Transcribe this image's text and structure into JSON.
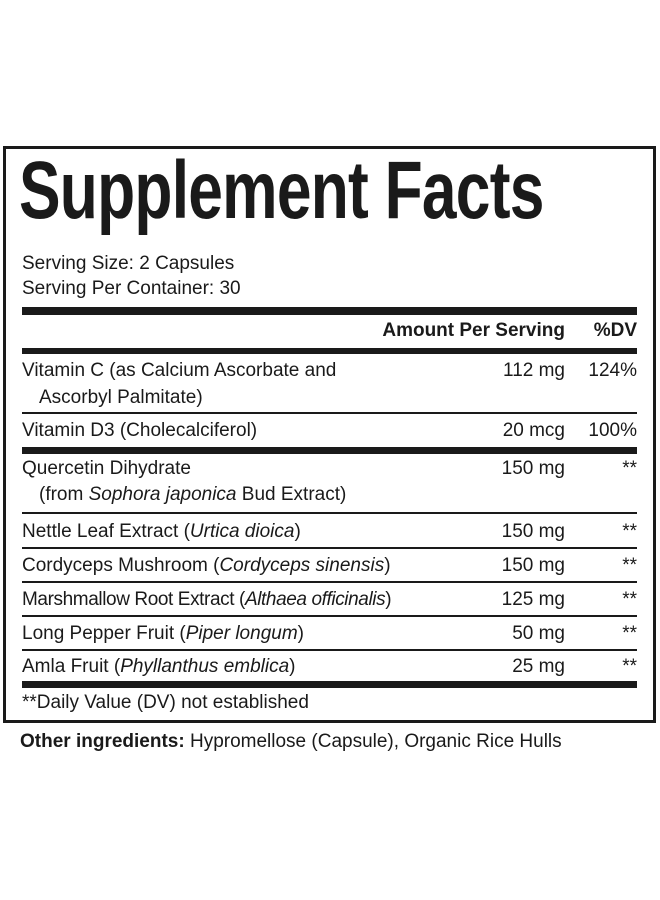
{
  "title": "Supplement Facts",
  "serving_size": "Serving Size: 2 Capsules",
  "servings_per_container": "Serving Per Container: 30",
  "header": {
    "amount": "Amount Per Serving",
    "dv": "%DV"
  },
  "rows": [
    {
      "name": "Vitamin C (as Calcium Ascorbate and",
      "name2": "Ascorbyl Palmitate)",
      "amount": "112 mg",
      "dv": "124%"
    },
    {
      "name": "Vitamin D3 (Cholecalciferol)",
      "amount": "20 mcg",
      "dv": "100%"
    },
    {
      "name": "Quercetin Dihydrate",
      "name2a": "(from ",
      "name2i": "Sophora japonica",
      "name2b": " Bud Extract)",
      "amount": "150 mg",
      "dv": "**"
    },
    {
      "name": "Nettle Leaf Extract (",
      "latin": "Urtica dioica",
      "close": ")",
      "amount": "150 mg",
      "dv": "**"
    },
    {
      "name": "Cordyceps Mushroom (",
      "latin": "Cordyceps sinensis",
      "close": ")",
      "amount": "150 mg",
      "dv": "**"
    },
    {
      "name": "Marshmallow Root Extract (",
      "latin": "Althaea officinalis",
      "close": ")",
      "amount": "125 mg",
      "dv": "**"
    },
    {
      "name": "Long Pepper Fruit (",
      "latin": "Piper longum",
      "close": ")",
      "amount": "50 mg",
      "dv": "**"
    },
    {
      "name": "Amla Fruit (",
      "latin": "Phyllanthus emblica",
      "close": ")",
      "amount": "25 mg",
      "dv": "**"
    }
  ],
  "footnote": "**Daily Value (DV) not established",
  "other": {
    "label": "Other ingredients:",
    "text": " Hypromellose (Capsule), Organic Rice Hulls"
  }
}
